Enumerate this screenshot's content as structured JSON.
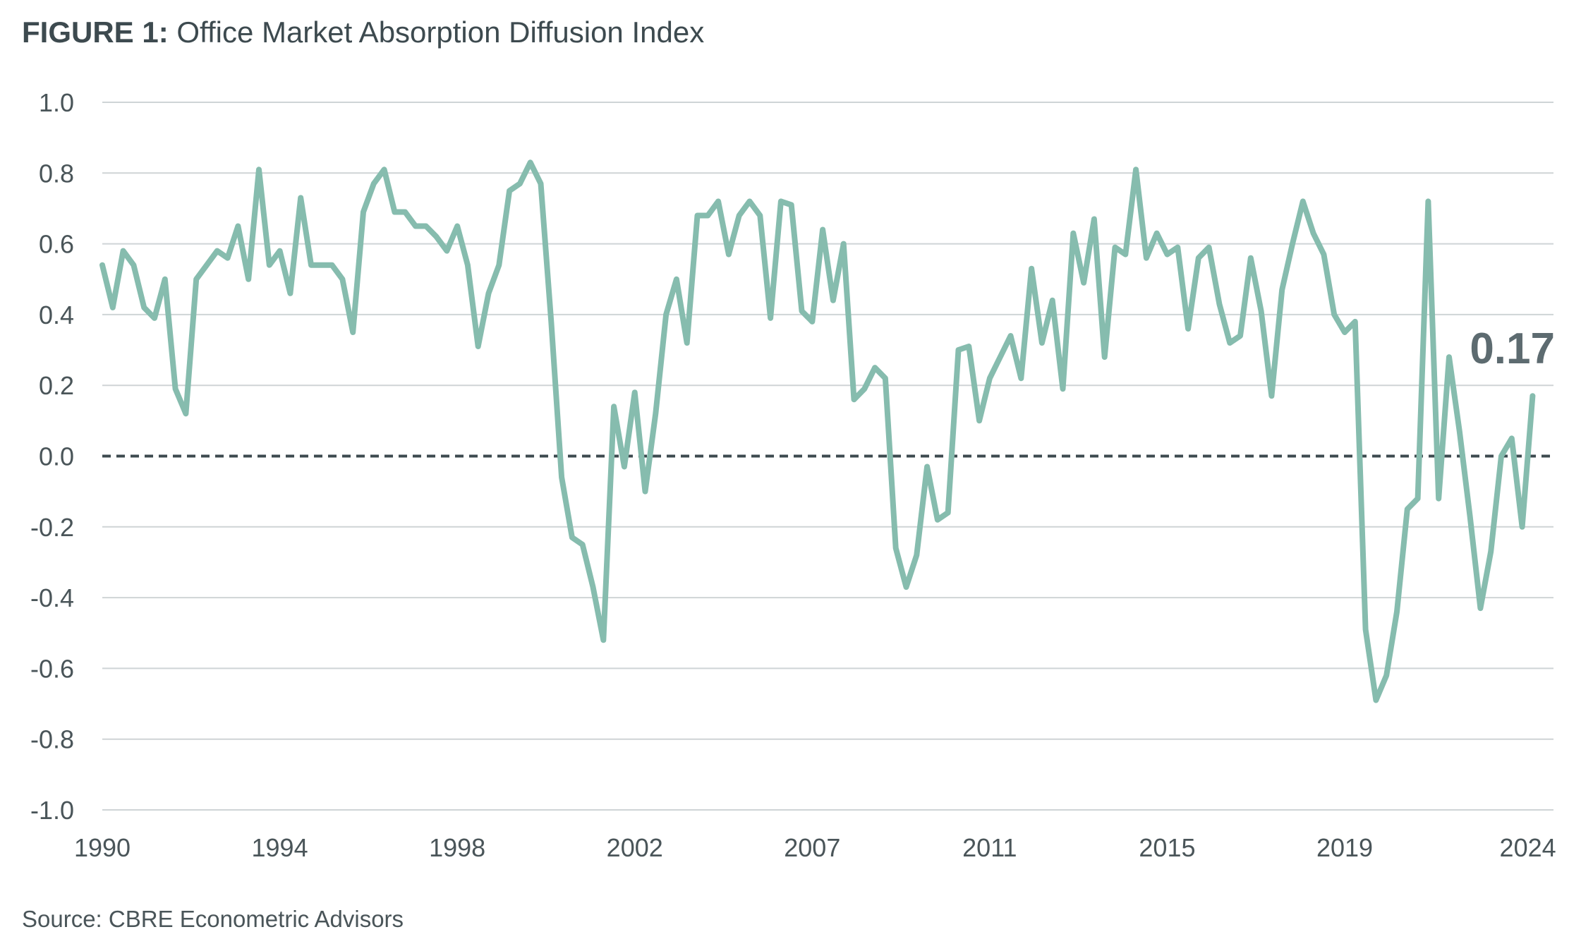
{
  "title": {
    "prefix": "FIGURE 1:",
    "text": "Office Market Absorption Diffusion Index"
  },
  "source": "Source: CBRE Econometric Advisors",
  "colors": {
    "line": "#86bcae",
    "grid": "#cfd4d6",
    "zero_line": "#3d4a4f",
    "text": "#4a5559"
  },
  "chart_data": {
    "type": "line",
    "title": "Office Market Absorption Diffusion Index",
    "xlabel": "",
    "ylabel": "",
    "ylim": [
      -1.0,
      1.0
    ],
    "xlim": [
      1990,
      2024.75
    ],
    "y_ticks": [
      "1.0",
      "0.8",
      "0.6",
      "0.4",
      "0.2",
      "0.0",
      "-0.2",
      "-0.4",
      "-0.6",
      "-0.8",
      "-1.0"
    ],
    "x_ticks": [
      {
        "label": "1990",
        "value": 1990
      },
      {
        "label": "1994",
        "value": 1994.25
      },
      {
        "label": "1998",
        "value": 1998.5
      },
      {
        "label": "2002",
        "value": 2002.75
      },
      {
        "label": "2007",
        "value": 2007
      },
      {
        "label": "2011",
        "value": 2011.25
      },
      {
        "label": "2015",
        "value": 2015.5
      },
      {
        "label": "2019",
        "value": 2019.75
      },
      {
        "label": "2024",
        "value": 2024
      }
    ],
    "reference_line": {
      "y": 0.0,
      "style": "dashed"
    },
    "end_label": "0.17",
    "series": [
      {
        "name": "Office Market Absorption Diffusion Index",
        "x_start": 1990,
        "x_step": 0.25,
        "values": [
          0.54,
          0.42,
          0.58,
          0.54,
          0.42,
          0.39,
          0.5,
          0.19,
          0.12,
          0.5,
          0.54,
          0.58,
          0.56,
          0.65,
          0.5,
          0.81,
          0.54,
          0.58,
          0.46,
          0.73,
          0.54,
          0.54,
          0.54,
          0.5,
          0.35,
          0.69,
          0.77,
          0.81,
          0.69,
          0.69,
          0.65,
          0.65,
          0.62,
          0.58,
          0.65,
          0.54,
          0.31,
          0.46,
          0.54,
          0.75,
          0.77,
          0.83,
          0.77,
          0.38,
          -0.06,
          -0.23,
          -0.25,
          -0.37,
          -0.52,
          0.14,
          -0.03,
          0.18,
          -0.1,
          0.12,
          0.4,
          0.5,
          0.32,
          0.68,
          0.68,
          0.72,
          0.57,
          0.68,
          0.72,
          0.68,
          0.39,
          0.72,
          0.71,
          0.41,
          0.38,
          0.64,
          0.44,
          0.6,
          0.16,
          0.19,
          0.25,
          0.22,
          -0.26,
          -0.37,
          -0.28,
          -0.03,
          -0.18,
          -0.16,
          0.3,
          0.31,
          0.1,
          0.22,
          0.28,
          0.34,
          0.22,
          0.53,
          0.32,
          0.44,
          0.19,
          0.63,
          0.49,
          0.67,
          0.28,
          0.59,
          0.57,
          0.81,
          0.56,
          0.63,
          0.57,
          0.59,
          0.36,
          0.56,
          0.59,
          0.43,
          0.32,
          0.34,
          0.56,
          0.41,
          0.17,
          0.47,
          0.6,
          0.72,
          0.63,
          0.57,
          0.4,
          0.35,
          0.38,
          -0.49,
          -0.69,
          -0.62,
          -0.44,
          -0.15,
          -0.12,
          0.72,
          -0.12,
          0.28,
          0.07,
          -0.17,
          -0.43,
          -0.27,
          0.0,
          0.05,
          -0.2,
          0.17
        ]
      }
    ]
  }
}
